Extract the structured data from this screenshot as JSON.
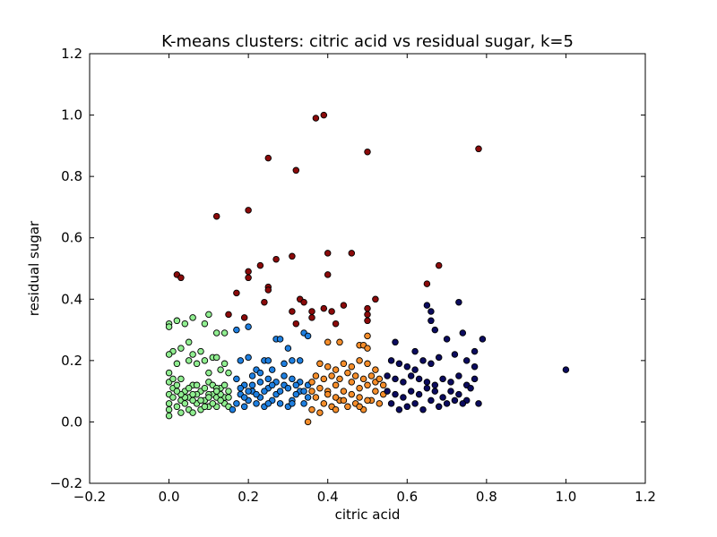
{
  "chart_data": {
    "type": "scatter",
    "title": "K-means clusters: citric acid vs residual sugar, k=5",
    "xlabel": "citric acid",
    "ylabel": "residual sugar",
    "xlim": [
      -0.2,
      1.2
    ],
    "ylim": [
      -0.2,
      1.2
    ],
    "xticks": [
      "−0.2",
      "0.0",
      "0.2",
      "0.4",
      "0.6",
      "0.8",
      "1.0",
      "1.2"
    ],
    "yticks": [
      "−0.2",
      "0.0",
      "0.2",
      "0.4",
      "0.6",
      "0.8",
      "1.0",
      "1.2"
    ],
    "grid": false,
    "legend": "none",
    "series": [
      {
        "color": "#90ee90",
        "points": [
          [
            0.0,
            0.32
          ],
          [
            0.0,
            0.31
          ],
          [
            0.02,
            0.33
          ],
          [
            0.04,
            0.32
          ],
          [
            0.06,
            0.34
          ],
          [
            0.09,
            0.32
          ],
          [
            0.1,
            0.35
          ],
          [
            0.01,
            0.23
          ],
          [
            0.0,
            0.22
          ],
          [
            0.03,
            0.24
          ],
          [
            0.05,
            0.26
          ],
          [
            0.06,
            0.22
          ],
          [
            0.08,
            0.23
          ],
          [
            0.09,
            0.2
          ],
          [
            0.11,
            0.21
          ],
          [
            0.12,
            0.29
          ],
          [
            0.14,
            0.29
          ],
          [
            0.12,
            0.21
          ],
          [
            0.13,
            0.17
          ],
          [
            0.14,
            0.19
          ],
          [
            0.15,
            0.16
          ],
          [
            0.02,
            0.19
          ],
          [
            0.05,
            0.2
          ],
          [
            0.07,
            0.19
          ],
          [
            0.1,
            0.16
          ],
          [
            0.0,
            0.16
          ],
          [
            0.0,
            0.13
          ],
          [
            0.01,
            0.11
          ],
          [
            0.0,
            0.09
          ],
          [
            0.0,
            0.06
          ],
          [
            0.0,
            0.04
          ],
          [
            0.0,
            0.02
          ],
          [
            0.02,
            0.12
          ],
          [
            0.03,
            0.14
          ],
          [
            0.04,
            0.1
          ],
          [
            0.05,
            0.08
          ],
          [
            0.06,
            0.12
          ],
          [
            0.07,
            0.06
          ],
          [
            0.08,
            0.1
          ],
          [
            0.09,
            0.07
          ],
          [
            0.1,
            0.13
          ],
          [
            0.11,
            0.09
          ],
          [
            0.12,
            0.05
          ],
          [
            0.13,
            0.11
          ],
          [
            0.14,
            0.08
          ],
          [
            0.15,
            0.1
          ],
          [
            0.02,
            0.05
          ],
          [
            0.03,
            0.07
          ],
          [
            0.05,
            0.04
          ],
          [
            0.06,
            0.03
          ],
          [
            0.08,
            0.04
          ],
          [
            0.1,
            0.05
          ],
          [
            0.12,
            0.08
          ],
          [
            0.14,
            0.06
          ],
          [
            0.04,
            0.08
          ],
          [
            0.07,
            0.09
          ],
          [
            0.09,
            0.11
          ],
          [
            0.11,
            0.12
          ],
          [
            0.13,
            0.07
          ],
          [
            0.15,
            0.05
          ],
          [
            0.01,
            0.08
          ],
          [
            0.03,
            0.09
          ],
          [
            0.06,
            0.07
          ],
          [
            0.08,
            0.07
          ],
          [
            0.1,
            0.09
          ],
          [
            0.12,
            0.11
          ],
          [
            0.13,
            0.09
          ],
          [
            0.14,
            0.12
          ],
          [
            0.02,
            0.1
          ],
          [
            0.05,
            0.11
          ],
          [
            0.07,
            0.12
          ],
          [
            0.1,
            0.08
          ],
          [
            0.11,
            0.06
          ],
          [
            0.15,
            0.08
          ],
          [
            0.04,
            0.06
          ],
          [
            0.09,
            0.05
          ],
          [
            0.01,
            0.14
          ],
          [
            0.03,
            0.03
          ],
          [
            0.12,
            0.1
          ],
          [
            0.06,
            0.09
          ]
        ]
      },
      {
        "color": "#1e7fe0",
        "points": [
          [
            0.17,
            0.3
          ],
          [
            0.2,
            0.31
          ],
          [
            0.18,
            0.2
          ],
          [
            0.2,
            0.21
          ],
          [
            0.22,
            0.17
          ],
          [
            0.24,
            0.2
          ],
          [
            0.25,
            0.2
          ],
          [
            0.27,
            0.27
          ],
          [
            0.28,
            0.27
          ],
          [
            0.3,
            0.24
          ],
          [
            0.29,
            0.19
          ],
          [
            0.31,
            0.2
          ],
          [
            0.33,
            0.2
          ],
          [
            0.34,
            0.29
          ],
          [
            0.35,
            0.28
          ],
          [
            0.26,
            0.17
          ],
          [
            0.23,
            0.16
          ],
          [
            0.21,
            0.15
          ],
          [
            0.17,
            0.14
          ],
          [
            0.19,
            0.12
          ],
          [
            0.21,
            0.1
          ],
          [
            0.23,
            0.08
          ],
          [
            0.25,
            0.11
          ],
          [
            0.27,
            0.09
          ],
          [
            0.29,
            0.12
          ],
          [
            0.31,
            0.07
          ],
          [
            0.33,
            0.1
          ],
          [
            0.35,
            0.08
          ],
          [
            0.18,
            0.09
          ],
          [
            0.2,
            0.07
          ],
          [
            0.22,
            0.06
          ],
          [
            0.24,
            0.05
          ],
          [
            0.26,
            0.07
          ],
          [
            0.28,
            0.06
          ],
          [
            0.3,
            0.05
          ],
          [
            0.32,
            0.09
          ],
          [
            0.34,
            0.06
          ],
          [
            0.16,
            0.04
          ],
          [
            0.17,
            0.06
          ],
          [
            0.19,
            0.08
          ],
          [
            0.21,
            0.12
          ],
          [
            0.23,
            0.13
          ],
          [
            0.25,
            0.14
          ],
          [
            0.27,
            0.13
          ],
          [
            0.29,
            0.15
          ],
          [
            0.31,
            0.14
          ],
          [
            0.33,
            0.13
          ],
          [
            0.35,
            0.12
          ],
          [
            0.18,
            0.11
          ],
          [
            0.2,
            0.1
          ],
          [
            0.22,
            0.09
          ],
          [
            0.24,
            0.1
          ],
          [
            0.26,
            0.12
          ],
          [
            0.28,
            0.1
          ],
          [
            0.3,
            0.11
          ],
          [
            0.32,
            0.12
          ],
          [
            0.34,
            0.1
          ],
          [
            0.19,
            0.05
          ],
          [
            0.25,
            0.06
          ],
          [
            0.31,
            0.06
          ]
        ]
      },
      {
        "color": "#f58d2a",
        "points": [
          [
            0.35,
            0.0
          ],
          [
            0.4,
            0.26
          ],
          [
            0.48,
            0.25
          ],
          [
            0.49,
            0.25
          ],
          [
            0.5,
            0.24
          ],
          [
            0.5,
            0.28
          ],
          [
            0.43,
            0.26
          ],
          [
            0.38,
            0.19
          ],
          [
            0.4,
            0.18
          ],
          [
            0.42,
            0.17
          ],
          [
            0.44,
            0.19
          ],
          [
            0.46,
            0.18
          ],
          [
            0.48,
            0.2
          ],
          [
            0.5,
            0.19
          ],
          [
            0.52,
            0.17
          ],
          [
            0.36,
            0.13
          ],
          [
            0.38,
            0.11
          ],
          [
            0.4,
            0.1
          ],
          [
            0.42,
            0.12
          ],
          [
            0.44,
            0.1
          ],
          [
            0.46,
            0.13
          ],
          [
            0.48,
            0.11
          ],
          [
            0.5,
            0.12
          ],
          [
            0.52,
            0.1
          ],
          [
            0.54,
            0.09
          ],
          [
            0.37,
            0.08
          ],
          [
            0.39,
            0.06
          ],
          [
            0.41,
            0.05
          ],
          [
            0.43,
            0.07
          ],
          [
            0.45,
            0.05
          ],
          [
            0.47,
            0.06
          ],
          [
            0.49,
            0.04
          ],
          [
            0.51,
            0.07
          ],
          [
            0.53,
            0.06
          ],
          [
            0.36,
            0.04
          ],
          [
            0.38,
            0.03
          ],
          [
            0.4,
            0.09
          ],
          [
            0.42,
            0.08
          ],
          [
            0.44,
            0.07
          ],
          [
            0.46,
            0.09
          ],
          [
            0.48,
            0.08
          ],
          [
            0.5,
            0.07
          ],
          [
            0.52,
            0.13
          ],
          [
            0.54,
            0.12
          ],
          [
            0.37,
            0.15
          ],
          [
            0.39,
            0.14
          ],
          [
            0.41,
            0.15
          ],
          [
            0.43,
            0.14
          ],
          [
            0.45,
            0.16
          ],
          [
            0.47,
            0.15
          ],
          [
            0.49,
            0.14
          ],
          [
            0.51,
            0.15
          ],
          [
            0.53,
            0.14
          ],
          [
            0.36,
            0.1
          ],
          [
            0.42,
            0.04
          ],
          [
            0.48,
            0.05
          ]
        ]
      },
      {
        "color": "#0b0b5e",
        "points": [
          [
            0.65,
            0.38
          ],
          [
            0.66,
            0.36
          ],
          [
            0.73,
            0.39
          ],
          [
            0.66,
            0.33
          ],
          [
            0.67,
            0.3
          ],
          [
            0.74,
            0.29
          ],
          [
            0.79,
            0.27
          ],
          [
            0.7,
            0.27
          ],
          [
            0.77,
            0.23
          ],
          [
            0.62,
            0.23
          ],
          [
            0.57,
            0.26
          ],
          [
            0.56,
            0.2
          ],
          [
            0.58,
            0.19
          ],
          [
            0.6,
            0.18
          ],
          [
            0.62,
            0.17
          ],
          [
            0.64,
            0.2
          ],
          [
            0.66,
            0.19
          ],
          [
            0.68,
            0.21
          ],
          [
            0.72,
            0.22
          ],
          [
            0.75,
            0.2
          ],
          [
            0.77,
            0.18
          ],
          [
            0.55,
            0.15
          ],
          [
            0.57,
            0.14
          ],
          [
            0.59,
            0.13
          ],
          [
            0.61,
            0.15
          ],
          [
            0.63,
            0.14
          ],
          [
            0.65,
            0.13
          ],
          [
            0.67,
            0.12
          ],
          [
            0.69,
            0.14
          ],
          [
            0.71,
            0.13
          ],
          [
            0.73,
            0.15
          ],
          [
            0.75,
            0.12
          ],
          [
            0.77,
            0.14
          ],
          [
            0.55,
            0.1
          ],
          [
            0.57,
            0.09
          ],
          [
            0.59,
            0.08
          ],
          [
            0.61,
            0.1
          ],
          [
            0.63,
            0.09
          ],
          [
            0.65,
            0.11
          ],
          [
            0.67,
            0.1
          ],
          [
            0.69,
            0.08
          ],
          [
            0.71,
            0.1
          ],
          [
            0.73,
            0.09
          ],
          [
            0.75,
            0.07
          ],
          [
            0.74,
            0.06
          ],
          [
            0.78,
            0.06
          ],
          [
            0.56,
            0.06
          ],
          [
            0.58,
            0.04
          ],
          [
            0.6,
            0.05
          ],
          [
            0.62,
            0.06
          ],
          [
            0.64,
            0.04
          ],
          [
            0.66,
            0.07
          ],
          [
            0.68,
            0.05
          ],
          [
            0.7,
            0.06
          ],
          [
            0.72,
            0.07
          ],
          [
            0.76,
            0.11
          ],
          [
            1.0,
            0.17
          ]
        ]
      },
      {
        "color": "#8b0a0a",
        "points": [
          [
            0.37,
            0.99
          ],
          [
            0.39,
            1.0
          ],
          [
            0.5,
            0.88
          ],
          [
            0.78,
            0.89
          ],
          [
            0.25,
            0.86
          ],
          [
            0.32,
            0.82
          ],
          [
            0.12,
            0.67
          ],
          [
            0.2,
            0.69
          ],
          [
            0.02,
            0.48
          ],
          [
            0.03,
            0.47
          ],
          [
            0.2,
            0.49
          ],
          [
            0.2,
            0.47
          ],
          [
            0.23,
            0.51
          ],
          [
            0.27,
            0.53
          ],
          [
            0.31,
            0.54
          ],
          [
            0.4,
            0.55
          ],
          [
            0.46,
            0.55
          ],
          [
            0.68,
            0.51
          ],
          [
            0.4,
            0.48
          ],
          [
            0.65,
            0.45
          ],
          [
            0.17,
            0.42
          ],
          [
            0.25,
            0.44
          ],
          [
            0.25,
            0.43
          ],
          [
            0.24,
            0.39
          ],
          [
            0.33,
            0.4
          ],
          [
            0.34,
            0.39
          ],
          [
            0.52,
            0.4
          ],
          [
            0.31,
            0.36
          ],
          [
            0.36,
            0.36
          ],
          [
            0.36,
            0.34
          ],
          [
            0.39,
            0.37
          ],
          [
            0.41,
            0.36
          ],
          [
            0.44,
            0.38
          ],
          [
            0.5,
            0.37
          ],
          [
            0.5,
            0.35
          ],
          [
            0.5,
            0.33
          ],
          [
            0.19,
            0.34
          ],
          [
            0.15,
            0.35
          ],
          [
            0.32,
            0.32
          ],
          [
            0.42,
            0.32
          ]
        ]
      }
    ]
  }
}
